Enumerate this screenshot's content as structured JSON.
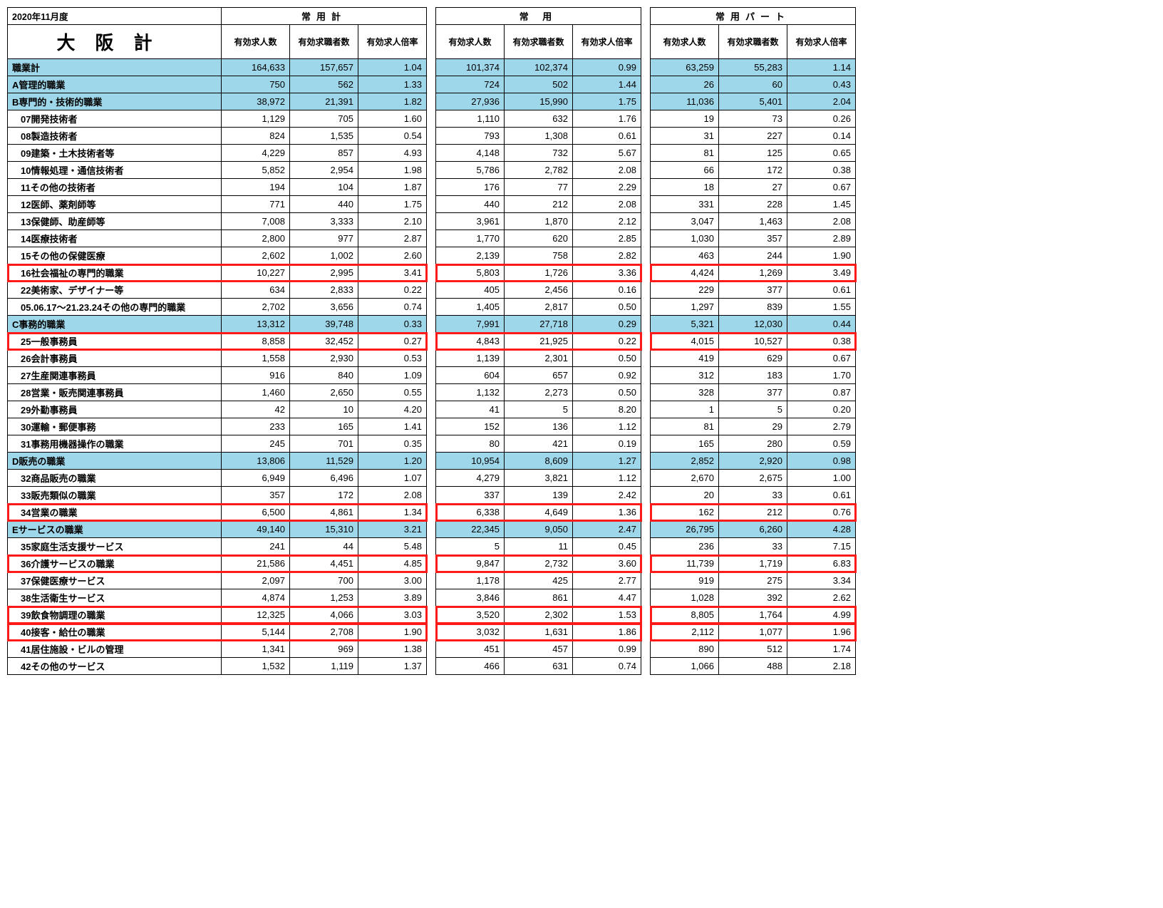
{
  "meta": {
    "period": "2020年11月度",
    "title": "大阪計"
  },
  "colors": {
    "category_bg": "#9fd7ea",
    "highlight_border": "#ff1a1a",
    "border": "#000000",
    "background": "#ffffff"
  },
  "groups": [
    {
      "key": "g1",
      "label": "常用計",
      "has_label_col": true
    },
    {
      "key": "g2",
      "label": "常 用",
      "has_label_col": false
    },
    {
      "key": "g3",
      "label": "常用パート",
      "has_label_col": false
    }
  ],
  "sub_headers": [
    "有効求人数",
    "有効求職者数",
    "有効求人倍率"
  ],
  "rows": [
    {
      "label": "職業計",
      "cat": true,
      "hl": false,
      "indent": 0,
      "g1": [
        "164,633",
        "157,657",
        "1.04"
      ],
      "g2": [
        "101,374",
        "102,374",
        "0.99"
      ],
      "g3": [
        "63,259",
        "55,283",
        "1.14"
      ]
    },
    {
      "label": "A管理的職業",
      "cat": true,
      "hl": false,
      "indent": 0,
      "g1": [
        "750",
        "562",
        "1.33"
      ],
      "g2": [
        "724",
        "502",
        "1.44"
      ],
      "g3": [
        "26",
        "60",
        "0.43"
      ]
    },
    {
      "label": "B専門的・技術的職業",
      "cat": true,
      "hl": false,
      "indent": 0,
      "g1": [
        "38,972",
        "21,391",
        "1.82"
      ],
      "g2": [
        "27,936",
        "15,990",
        "1.75"
      ],
      "g3": [
        "11,036",
        "5,401",
        "2.04"
      ]
    },
    {
      "label": "07開発技術者",
      "cat": false,
      "hl": false,
      "indent": 1,
      "g1": [
        "1,129",
        "705",
        "1.60"
      ],
      "g2": [
        "1,110",
        "632",
        "1.76"
      ],
      "g3": [
        "19",
        "73",
        "0.26"
      ]
    },
    {
      "label": "08製造技術者",
      "cat": false,
      "hl": false,
      "indent": 1,
      "g1": [
        "824",
        "1,535",
        "0.54"
      ],
      "g2": [
        "793",
        "1,308",
        "0.61"
      ],
      "g3": [
        "31",
        "227",
        "0.14"
      ]
    },
    {
      "label": "09建築・土木技術者等",
      "cat": false,
      "hl": false,
      "indent": 1,
      "g1": [
        "4,229",
        "857",
        "4.93"
      ],
      "g2": [
        "4,148",
        "732",
        "5.67"
      ],
      "g3": [
        "81",
        "125",
        "0.65"
      ]
    },
    {
      "label": "10情報処理・通信技術者",
      "cat": false,
      "hl": false,
      "indent": 1,
      "g1": [
        "5,852",
        "2,954",
        "1.98"
      ],
      "g2": [
        "5,786",
        "2,782",
        "2.08"
      ],
      "g3": [
        "66",
        "172",
        "0.38"
      ]
    },
    {
      "label": "11その他の技術者",
      "cat": false,
      "hl": false,
      "indent": 1,
      "g1": [
        "194",
        "104",
        "1.87"
      ],
      "g2": [
        "176",
        "77",
        "2.29"
      ],
      "g3": [
        "18",
        "27",
        "0.67"
      ]
    },
    {
      "label": "12医師、薬剤師等",
      "cat": false,
      "hl": false,
      "indent": 1,
      "g1": [
        "771",
        "440",
        "1.75"
      ],
      "g2": [
        "440",
        "212",
        "2.08"
      ],
      "g3": [
        "331",
        "228",
        "1.45"
      ]
    },
    {
      "label": "13保健師、助産師等",
      "cat": false,
      "hl": false,
      "indent": 1,
      "g1": [
        "7,008",
        "3,333",
        "2.10"
      ],
      "g2": [
        "3,961",
        "1,870",
        "2.12"
      ],
      "g3": [
        "3,047",
        "1,463",
        "2.08"
      ]
    },
    {
      "label": "14医療技術者",
      "cat": false,
      "hl": false,
      "indent": 1,
      "g1": [
        "2,800",
        "977",
        "2.87"
      ],
      "g2": [
        "1,770",
        "620",
        "2.85"
      ],
      "g3": [
        "1,030",
        "357",
        "2.89"
      ]
    },
    {
      "label": "15その他の保健医療",
      "cat": false,
      "hl": false,
      "indent": 1,
      "g1": [
        "2,602",
        "1,002",
        "2.60"
      ],
      "g2": [
        "2,139",
        "758",
        "2.82"
      ],
      "g3": [
        "463",
        "244",
        "1.90"
      ]
    },
    {
      "label": "16社会福祉の専門的職業",
      "cat": false,
      "hl": true,
      "indent": 1,
      "g1": [
        "10,227",
        "2,995",
        "3.41"
      ],
      "g2": [
        "5,803",
        "1,726",
        "3.36"
      ],
      "g3": [
        "4,424",
        "1,269",
        "3.49"
      ]
    },
    {
      "label": "22美術家、デザイナー等",
      "cat": false,
      "hl": false,
      "indent": 1,
      "g1": [
        "634",
        "2,833",
        "0.22"
      ],
      "g2": [
        "405",
        "2,456",
        "0.16"
      ],
      "g3": [
        "229",
        "377",
        "0.61"
      ]
    },
    {
      "label": "05.06.17～21.23.24その他の専門的職業",
      "cat": false,
      "hl": false,
      "indent": 1,
      "g1": [
        "2,702",
        "3,656",
        "0.74"
      ],
      "g2": [
        "1,405",
        "2,817",
        "0.50"
      ],
      "g3": [
        "1,297",
        "839",
        "1.55"
      ]
    },
    {
      "label": "C事務的職業",
      "cat": true,
      "hl": false,
      "indent": 0,
      "g1": [
        "13,312",
        "39,748",
        "0.33"
      ],
      "g2": [
        "7,991",
        "27,718",
        "0.29"
      ],
      "g3": [
        "5,321",
        "12,030",
        "0.44"
      ]
    },
    {
      "label": "25一般事務員",
      "cat": false,
      "hl": true,
      "indent": 1,
      "g1": [
        "8,858",
        "32,452",
        "0.27"
      ],
      "g2": [
        "4,843",
        "21,925",
        "0.22"
      ],
      "g3": [
        "4,015",
        "10,527",
        "0.38"
      ]
    },
    {
      "label": "26会計事務員",
      "cat": false,
      "hl": false,
      "indent": 1,
      "g1": [
        "1,558",
        "2,930",
        "0.53"
      ],
      "g2": [
        "1,139",
        "2,301",
        "0.50"
      ],
      "g3": [
        "419",
        "629",
        "0.67"
      ]
    },
    {
      "label": "27生産関連事務員",
      "cat": false,
      "hl": false,
      "indent": 1,
      "g1": [
        "916",
        "840",
        "1.09"
      ],
      "g2": [
        "604",
        "657",
        "0.92"
      ],
      "g3": [
        "312",
        "183",
        "1.70"
      ]
    },
    {
      "label": "28営業・販売関連事務員",
      "cat": false,
      "hl": false,
      "indent": 1,
      "g1": [
        "1,460",
        "2,650",
        "0.55"
      ],
      "g2": [
        "1,132",
        "2,273",
        "0.50"
      ],
      "g3": [
        "328",
        "377",
        "0.87"
      ]
    },
    {
      "label": "29外勤事務員",
      "cat": false,
      "hl": false,
      "indent": 1,
      "g1": [
        "42",
        "10",
        "4.20"
      ],
      "g2": [
        "41",
        "5",
        "8.20"
      ],
      "g3": [
        "1",
        "5",
        "0.20"
      ]
    },
    {
      "label": "30運輸・郵便事務",
      "cat": false,
      "hl": false,
      "indent": 1,
      "g1": [
        "233",
        "165",
        "1.41"
      ],
      "g2": [
        "152",
        "136",
        "1.12"
      ],
      "g3": [
        "81",
        "29",
        "2.79"
      ]
    },
    {
      "label": "31事務用機器操作の職業",
      "cat": false,
      "hl": false,
      "indent": 1,
      "g1": [
        "245",
        "701",
        "0.35"
      ],
      "g2": [
        "80",
        "421",
        "0.19"
      ],
      "g3": [
        "165",
        "280",
        "0.59"
      ]
    },
    {
      "label": "D販売の職業",
      "cat": true,
      "hl": false,
      "indent": 0,
      "g1": [
        "13,806",
        "11,529",
        "1.20"
      ],
      "g2": [
        "10,954",
        "8,609",
        "1.27"
      ],
      "g3": [
        "2,852",
        "2,920",
        "0.98"
      ]
    },
    {
      "label": "32商品販売の職業",
      "cat": false,
      "hl": false,
      "indent": 1,
      "g1": [
        "6,949",
        "6,496",
        "1.07"
      ],
      "g2": [
        "4,279",
        "3,821",
        "1.12"
      ],
      "g3": [
        "2,670",
        "2,675",
        "1.00"
      ]
    },
    {
      "label": "33販売類似の職業",
      "cat": false,
      "hl": false,
      "indent": 1,
      "g1": [
        "357",
        "172",
        "2.08"
      ],
      "g2": [
        "337",
        "139",
        "2.42"
      ],
      "g3": [
        "20",
        "33",
        "0.61"
      ]
    },
    {
      "label": "34営業の職業",
      "cat": false,
      "hl": true,
      "indent": 1,
      "g1": [
        "6,500",
        "4,861",
        "1.34"
      ],
      "g2": [
        "6,338",
        "4,649",
        "1.36"
      ],
      "g3": [
        "162",
        "212",
        "0.76"
      ]
    },
    {
      "label": "Eサービスの職業",
      "cat": true,
      "hl": false,
      "indent": 0,
      "g1": [
        "49,140",
        "15,310",
        "3.21"
      ],
      "g2": [
        "22,345",
        "9,050",
        "2.47"
      ],
      "g3": [
        "26,795",
        "6,260",
        "4.28"
      ]
    },
    {
      "label": "35家庭生活支援サービス",
      "cat": false,
      "hl": false,
      "indent": 1,
      "g1": [
        "241",
        "44",
        "5.48"
      ],
      "g2": [
        "5",
        "11",
        "0.45"
      ],
      "g3": [
        "236",
        "33",
        "7.15"
      ]
    },
    {
      "label": "36介護サービスの職業",
      "cat": false,
      "hl": true,
      "indent": 1,
      "g1": [
        "21,586",
        "4,451",
        "4.85"
      ],
      "g2": [
        "9,847",
        "2,732",
        "3.60"
      ],
      "g3": [
        "11,739",
        "1,719",
        "6.83"
      ]
    },
    {
      "label": "37保健医療サービス",
      "cat": false,
      "hl": false,
      "indent": 1,
      "g1": [
        "2,097",
        "700",
        "3.00"
      ],
      "g2": [
        "1,178",
        "425",
        "2.77"
      ],
      "g3": [
        "919",
        "275",
        "3.34"
      ]
    },
    {
      "label": "38生活衛生サービス",
      "cat": false,
      "hl": false,
      "indent": 1,
      "g1": [
        "4,874",
        "1,253",
        "3.89"
      ],
      "g2": [
        "3,846",
        "861",
        "4.47"
      ],
      "g3": [
        "1,028",
        "392",
        "2.62"
      ]
    },
    {
      "label": "39飲食物調理の職業",
      "cat": false,
      "hl": true,
      "indent": 1,
      "g1": [
        "12,325",
        "4,066",
        "3.03"
      ],
      "g2": [
        "3,520",
        "2,302",
        "1.53"
      ],
      "g3": [
        "8,805",
        "1,764",
        "4.99"
      ]
    },
    {
      "label": "40接客・給仕の職業",
      "cat": false,
      "hl": true,
      "indent": 1,
      "g1": [
        "5,144",
        "2,708",
        "1.90"
      ],
      "g2": [
        "3,032",
        "1,631",
        "1.86"
      ],
      "g3": [
        "2,112",
        "1,077",
        "1.96"
      ]
    },
    {
      "label": "41居住施設・ビルの管理",
      "cat": false,
      "hl": false,
      "indent": 1,
      "g1": [
        "1,341",
        "969",
        "1.38"
      ],
      "g2": [
        "451",
        "457",
        "0.99"
      ],
      "g3": [
        "890",
        "512",
        "1.74"
      ]
    },
    {
      "label": "42その他のサービス",
      "cat": false,
      "hl": false,
      "indent": 1,
      "g1": [
        "1,532",
        "1,119",
        "1.37"
      ],
      "g2": [
        "466",
        "631",
        "0.74"
      ],
      "g3": [
        "1,066",
        "488",
        "2.18"
      ]
    }
  ]
}
